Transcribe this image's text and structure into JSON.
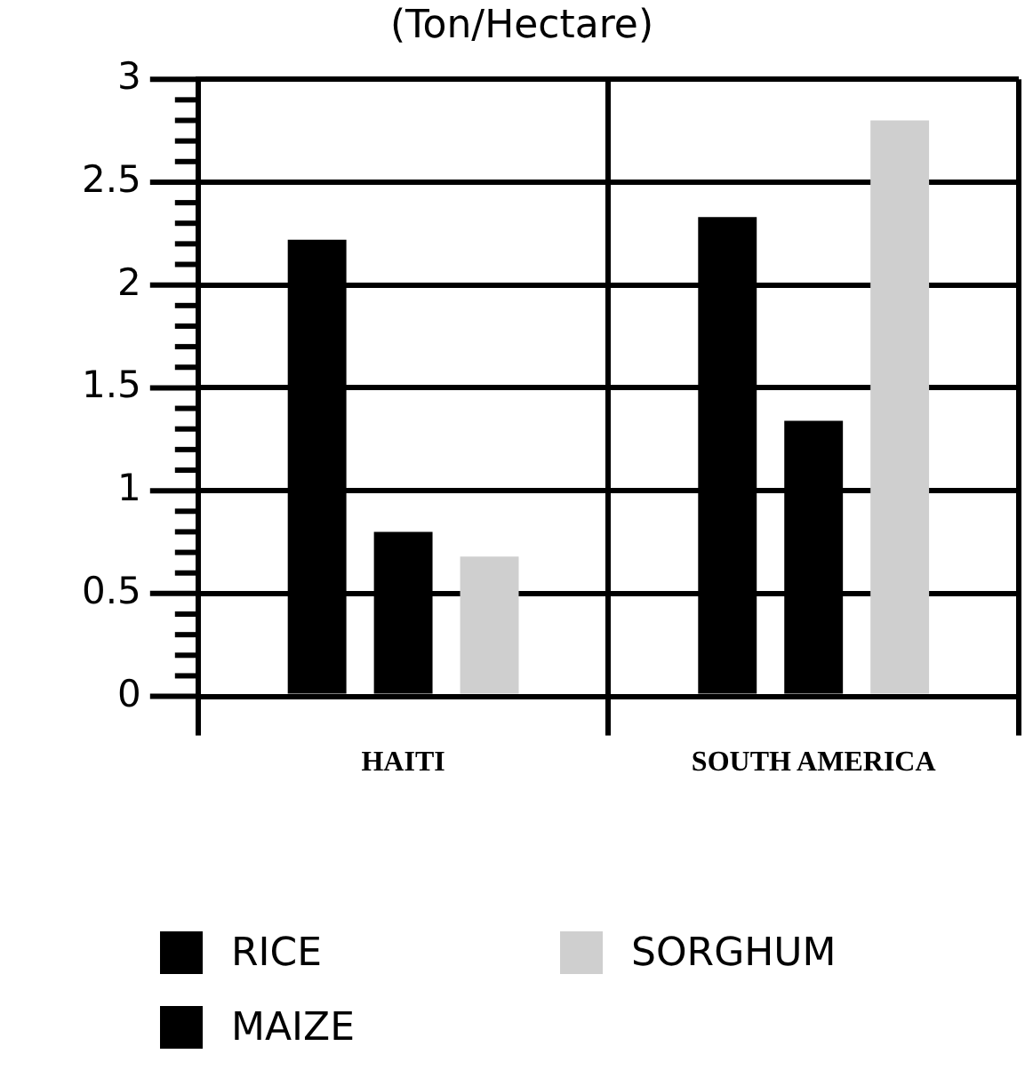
{
  "chart_data": {
    "type": "bar",
    "title": "(Ton/Hectare)",
    "categories": [
      "HAITI",
      "SOUTH AMERICA"
    ],
    "series": [
      {
        "name": "RICE",
        "color": "#000000",
        "values": [
          2.22,
          2.33
        ]
      },
      {
        "name": "MAIZE",
        "color": "#000000",
        "values": [
          0.8,
          1.34
        ]
      },
      {
        "name": "SORGHUM",
        "color": "#cfcfcf",
        "values": [
          0.68,
          2.8
        ]
      }
    ],
    "ylim": [
      0,
      3
    ],
    "yticks": [
      0,
      {
        "value": 0.1,
        "label": null
      },
      {
        "value": 0.2,
        "label": null
      },
      {
        "value": 0.3,
        "label": null
      },
      {
        "value": 0.4,
        "label": null
      },
      0.5,
      {
        "value": 0.6,
        "label": null
      },
      {
        "value": 0.7,
        "label": null
      },
      {
        "value": 0.8,
        "label": null
      },
      {
        "value": 0.9,
        "label": null
      },
      1,
      {
        "value": 1.1,
        "label": null
      },
      {
        "value": 1.2,
        "label": null
      },
      {
        "value": 1.3,
        "label": null
      },
      {
        "value": 1.4,
        "label": null
      },
      1.5,
      {
        "value": 1.6,
        "label": null
      },
      {
        "value": 1.7,
        "label": null
      },
      {
        "value": 1.8,
        "label": null
      },
      {
        "value": 1.9,
        "label": null
      },
      2,
      {
        "value": 2.1,
        "label": null
      },
      {
        "value": 2.2,
        "label": null
      },
      {
        "value": 2.3,
        "label": null
      },
      {
        "value": 2.4,
        "label": null
      },
      2.5,
      {
        "value": 2.6,
        "label": null
      },
      {
        "value": 2.7,
        "label": null
      },
      {
        "value": 2.8,
        "label": null
      },
      {
        "value": 2.9,
        "label": null
      },
      3
    ],
    "grid": true,
    "legend": "bottom left"
  }
}
